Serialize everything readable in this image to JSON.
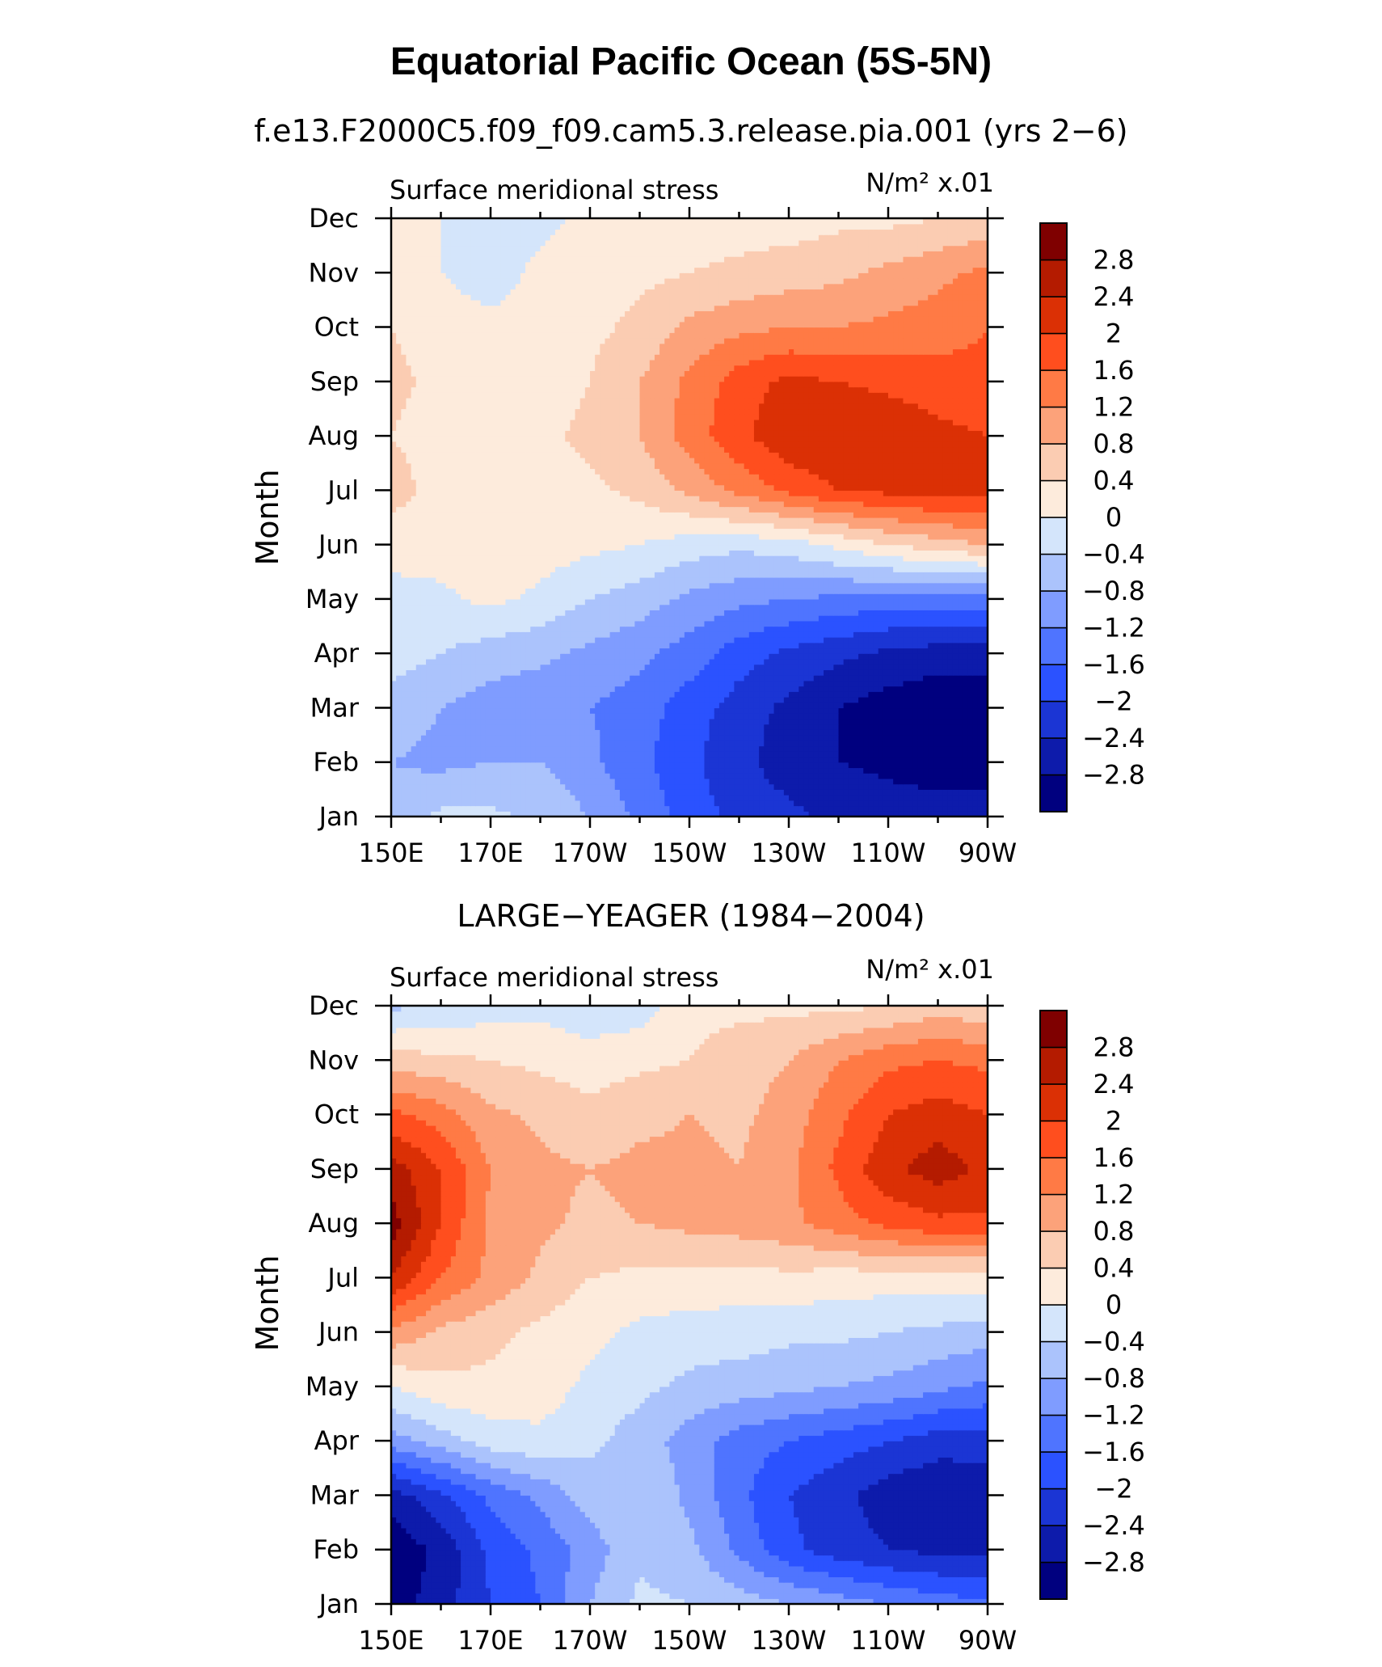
{
  "title": "Equatorial Pacific Ocean (5S-5N)",
  "colors": [
    "#00007f",
    "#0d1bab",
    "#1b35d4",
    "#2b52ff",
    "#4f74ff",
    "#7f9cff",
    "#abc3fc",
    "#d4e5fb",
    "#fdebdc",
    "#fbccb2",
    "#fca27a",
    "#ff7a45",
    "#ff4e1e",
    "#db3005",
    "#b41b00",
    "#7f0000"
  ],
  "chart_data": [
    {
      "type": "heatmap",
      "header": "f.e13.F2000C5.f09_f09.cam5.3.release.pia.001 (yrs 2−6)",
      "left_string": "Surface meridional stress",
      "right_string": "N/m² x.01",
      "ylabel": "Month",
      "x_ticks": [
        "150E",
        "170E",
        "170W",
        "150W",
        "130W",
        "110W",
        "90W"
      ],
      "y_ticks": [
        "Jan",
        "Feb",
        "Mar",
        "Apr",
        "May",
        "Jun",
        "Jul",
        "Aug",
        "Sep",
        "Oct",
        "Nov",
        "Dec"
      ],
      "lon": [
        150,
        160,
        170,
        180,
        190,
        200,
        210,
        220,
        230,
        240,
        250,
        260,
        270
      ],
      "levels": [
        "−2.8",
        "−2.4",
        "−2",
        "−1.6",
        "−1.2",
        "−0.8",
        "−0.4",
        "0",
        "0.4",
        "0.8",
        "1.2",
        "1.6",
        "2",
        "2.4",
        "2.8"
      ],
      "values": [
        [
          -0.7,
          -0.3,
          -0.3,
          -0.5,
          -0.8,
          -1.3,
          -1.8,
          -2.1,
          -2.3,
          -2.5,
          -2.6,
          -2.6,
          -2.6
        ],
        [
          -0.8,
          -0.9,
          -0.8,
          -0.8,
          -1.1,
          -1.5,
          -1.9,
          -2.3,
          -2.6,
          -2.8,
          -2.9,
          -3.0,
          -3.0
        ],
        [
          -0.6,
          -0.8,
          -1.0,
          -1.1,
          -1.2,
          -1.4,
          -1.8,
          -2.2,
          -2.5,
          -2.8,
          -3.0,
          -3.1,
          -3.1
        ],
        [
          -0.2,
          -0.4,
          -0.6,
          -0.7,
          -0.9,
          -1.1,
          -1.4,
          -1.8,
          -2.1,
          -2.3,
          -2.5,
          -2.6,
          -2.6
        ],
        [
          -0.1,
          -0.1,
          0.1,
          -0.1,
          -0.4,
          -0.6,
          -0.9,
          -1.1,
          -1.2,
          -1.3,
          -1.4,
          -1.4,
          -1.4
        ],
        [
          0.1,
          0.2,
          0.3,
          0.2,
          0.1,
          0.0,
          -0.2,
          -0.3,
          -0.2,
          0.1,
          0.4,
          0.6,
          0.8
        ],
        [
          0.6,
          0.2,
          0.2,
          0.2,
          0.3,
          0.5,
          0.9,
          1.3,
          1.7,
          2.0,
          2.1,
          2.2,
          2.2
        ],
        [
          0.4,
          0.2,
          0.2,
          0.3,
          0.5,
          0.8,
          1.4,
          1.9,
          2.3,
          2.4,
          2.3,
          2.1,
          2.0
        ],
        [
          0.5,
          0.3,
          0.2,
          0.2,
          0.4,
          0.8,
          1.3,
          1.8,
          2.1,
          2.0,
          1.9,
          1.8,
          1.7
        ],
        [
          0.4,
          0.2,
          0.1,
          0.2,
          0.3,
          0.5,
          0.9,
          1.1,
          1.2,
          1.2,
          1.3,
          1.4,
          1.6
        ],
        [
          0.2,
          0.0,
          -0.2,
          0.1,
          0.2,
          0.3,
          0.4,
          0.5,
          0.6,
          0.7,
          0.9,
          1.1,
          1.3
        ],
        [
          0.1,
          0.0,
          -0.2,
          -0.1,
          0.1,
          0.2,
          0.2,
          0.2,
          0.2,
          0.3,
          0.3,
          0.4,
          0.5
        ]
      ]
    },
    {
      "type": "heatmap",
      "header": "LARGE−YEAGER (1984−2004)",
      "left_string": "Surface meridional stress",
      "right_string": "N/m² x.01",
      "ylabel": "Month",
      "x_ticks": [
        "150E",
        "170E",
        "170W",
        "150W",
        "130W",
        "110W",
        "90W"
      ],
      "y_ticks": [
        "Jan",
        "Feb",
        "Mar",
        "Apr",
        "May",
        "Jun",
        "Jul",
        "Aug",
        "Sep",
        "Oct",
        "Nov",
        "Dec"
      ],
      "lon": [
        150,
        160,
        170,
        180,
        190,
        200,
        210,
        220,
        230,
        240,
        250,
        260,
        270
      ],
      "levels": [
        "−2.8",
        "−2.4",
        "−2",
        "−1.6",
        "−1.2",
        "−0.8",
        "−0.4",
        "0",
        "0.4",
        "0.8",
        "1.2",
        "1.6",
        "2",
        "2.4",
        "2.8"
      ],
      "values": [
        [
          -3.0,
          -2.6,
          -2.0,
          -1.6,
          -0.8,
          -0.3,
          -0.4,
          -0.6,
          -0.8,
          -1.0,
          -1.2,
          -1.4,
          -1.5
        ],
        [
          -3.1,
          -2.7,
          -1.9,
          -1.5,
          -1.0,
          -0.5,
          -0.7,
          -1.3,
          -1.9,
          -2.2,
          -2.4,
          -2.5,
          -2.5
        ],
        [
          -2.6,
          -2.1,
          -1.5,
          -1.1,
          -0.6,
          -0.4,
          -0.9,
          -1.5,
          -2.0,
          -2.3,
          -2.6,
          -2.8,
          -2.7
        ],
        [
          -1.0,
          -0.6,
          -0.2,
          -0.1,
          -0.3,
          -0.6,
          -1.0,
          -1.4,
          -1.6,
          -1.8,
          -2.0,
          -2.2,
          -2.2
        ],
        [
          0.0,
          0.3,
          0.3,
          0.2,
          -0.1,
          -0.3,
          -0.5,
          -0.6,
          -0.7,
          -0.8,
          -0.9,
          -1.1,
          -1.3
        ],
        [
          1.1,
          0.7,
          0.5,
          0.3,
          0.1,
          -0.1,
          -0.2,
          -0.2,
          -0.3,
          -0.3,
          -0.4,
          -0.5,
          -0.6
        ],
        [
          2.4,
          1.6,
          1.1,
          0.7,
          0.4,
          0.3,
          0.3,
          0.2,
          0.3,
          0.2,
          0.2,
          0.2,
          0.2
        ],
        [
          3.0,
          2.0,
          1.1,
          0.9,
          0.7,
          0.8,
          0.9,
          1.0,
          1.1,
          1.4,
          1.7,
          1.9,
          1.9
        ],
        [
          2.6,
          2.0,
          1.2,
          0.9,
          0.8,
          0.9,
          0.9,
          0.8,
          1.1,
          1.7,
          2.3,
          2.6,
          2.3
        ],
        [
          1.7,
          1.4,
          0.9,
          0.7,
          0.5,
          0.7,
          0.8,
          0.7,
          1.0,
          1.5,
          2.0,
          2.2,
          2.0
        ],
        [
          0.6,
          0.5,
          0.4,
          0.3,
          0.2,
          0.3,
          0.4,
          0.6,
          0.8,
          1.2,
          1.5,
          1.6,
          1.5
        ],
        [
          -0.5,
          -0.3,
          -0.2,
          -0.1,
          -0.3,
          -0.2,
          0.3,
          0.3,
          0.3,
          0.3,
          0.4,
          0.6,
          0.5
        ]
      ]
    }
  ]
}
